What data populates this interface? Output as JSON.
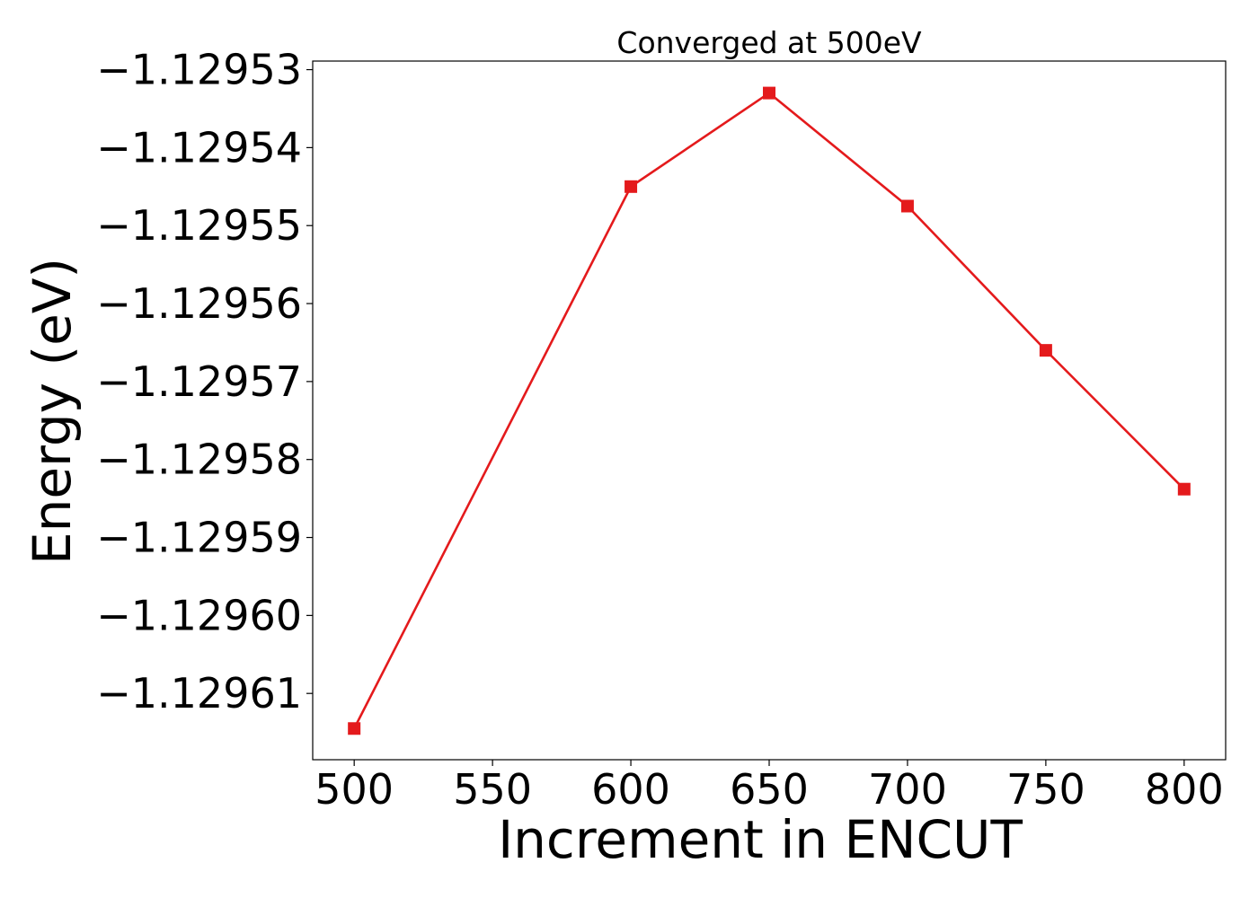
{
  "chart_data": {
    "type": "line",
    "title": "Converged at 500eV",
    "xlabel": "Increment in ENCUT",
    "ylabel": "Energy (eV)",
    "x": [
      500,
      600,
      650,
      700,
      750,
      800
    ],
    "series": [
      {
        "values": [
          -1.1296145,
          -1.129545,
          -1.129533,
          -1.1295475,
          -1.129566,
          -1.1295838
        ],
        "color": "#e41a1c",
        "marker": "square"
      }
    ],
    "xticks": [
      500,
      550,
      600,
      650,
      700,
      750,
      800
    ],
    "xtick_labels": [
      "500",
      "550",
      "600",
      "650",
      "700",
      "750",
      "800"
    ],
    "yticks": [
      -1.12961,
      -1.1296,
      -1.12959,
      -1.12958,
      -1.12957,
      -1.12956,
      -1.12955,
      -1.12954,
      -1.12953
    ],
    "ytick_labels": [
      "−1.12961",
      "−1.12960",
      "−1.12959",
      "−1.12958",
      "−1.12957",
      "−1.12956",
      "−1.12955",
      "−1.12954",
      "−1.12953"
    ],
    "xlim": [
      485,
      815
    ],
    "ylim": [
      -1.1296185,
      -1.1295289
    ],
    "grid": false,
    "legend": "none"
  }
}
